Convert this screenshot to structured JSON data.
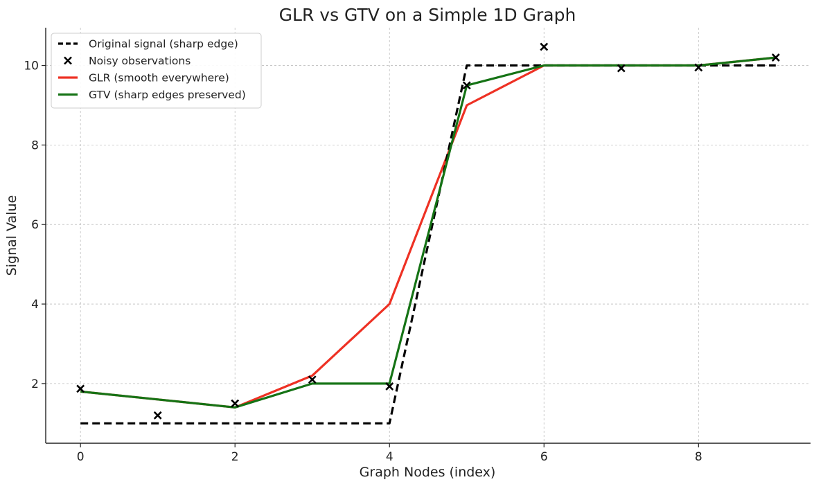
{
  "chart_data": {
    "type": "line",
    "title": "GLR vs GTV on a Simple 1D Graph",
    "xlabel": "Graph Nodes (index)",
    "ylabel": "Signal Value",
    "xlim": [
      -0.45,
      9.45
    ],
    "ylim": [
      0.5,
      10.95
    ],
    "xticks": [
      0,
      2,
      4,
      6,
      8
    ],
    "yticks": [
      2,
      4,
      6,
      8,
      10
    ],
    "grid": true,
    "legend_position": "top-left",
    "x": [
      0,
      1,
      2,
      3,
      4,
      5,
      6,
      7,
      8,
      9
    ],
    "series": [
      {
        "name": "Original signal (sharp edge)",
        "style": "dashed",
        "color": "#000000",
        "values": [
          1,
          1,
          1,
          1,
          1,
          10,
          10,
          10,
          10,
          10
        ]
      },
      {
        "name": "Noisy observations",
        "style": "markers-x",
        "color": "#000000",
        "values": [
          1.87,
          1.2,
          1.5,
          2.1,
          1.93,
          9.5,
          10.47,
          9.93,
          9.95,
          10.2
        ]
      },
      {
        "name": "GLR (smooth everywhere)",
        "style": "solid",
        "color": "#ee3124",
        "values": [
          1.8,
          1.6,
          1.4,
          2.2,
          4.0,
          9.0,
          10.0,
          10.0,
          10.0,
          10.2
        ]
      },
      {
        "name": "GTV (sharp edges preserved)",
        "style": "solid",
        "color": "#157315",
        "values": [
          1.8,
          1.6,
          1.4,
          2.0,
          2.0,
          9.5,
          10.0,
          10.0,
          10.0,
          10.2
        ]
      }
    ]
  }
}
